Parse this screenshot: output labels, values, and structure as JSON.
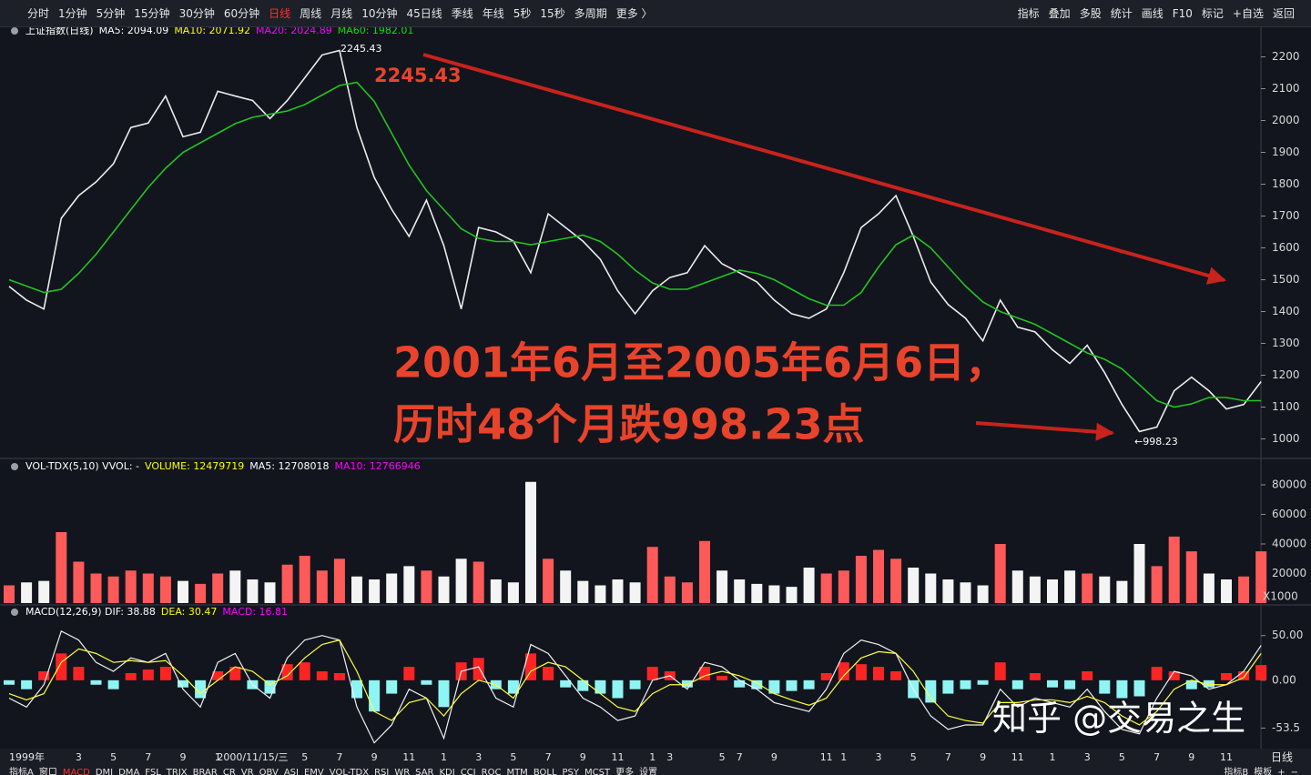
{
  "toolbar": {
    "left": [
      "分时",
      "1分钟",
      "5分钟",
      "15分钟",
      "30分钟",
      "60分钟",
      "日线",
      "周线",
      "月线",
      "10分钟",
      "45日线",
      "季线",
      "年线",
      "5秒",
      "15秒",
      "多周期",
      "更多 〉"
    ],
    "active": 6,
    "right": [
      "指标",
      "叠加",
      "多股",
      "统计",
      "画线",
      "F10",
      "标记",
      "+自选",
      "返回"
    ]
  },
  "bottom_tabs": {
    "left": [
      "指标A",
      "窗口",
      "MACD",
      "DMI",
      "DMA",
      "FSL",
      "TRIX",
      "BRAR",
      "CR",
      "VR",
      "OBV",
      "ASI",
      "EMV",
      "VOL-TDX",
      "RSI",
      "WR",
      "SAR",
      "KDJ",
      "CCI",
      "ROC",
      "MTM",
      "BOLL",
      "PSY",
      "MCST",
      "更多",
      "设置"
    ],
    "active": 2,
    "right": [
      "指标B",
      "模板",
      "+",
      "−"
    ]
  },
  "period_label": "日线",
  "watermark": "知乎 @交易之生",
  "chart_data": [
    {
      "type": "line",
      "header": [
        {
          "text": "上证指数(日线)",
          "color": "#ffffff"
        },
        {
          "text": "MA5: 2094.09",
          "color": "#ffffff"
        },
        {
          "text": "MA10: 2071.92",
          "color": "#ffff00"
        },
        {
          "text": "MA20: 2024.89",
          "color": "#ff00ff"
        },
        {
          "text": "MA60: 1982.01",
          "color": "#00e600"
        }
      ],
      "annotations": {
        "peak_big": "2245.43",
        "peak_small": "2245.43",
        "low_small": "←998.23",
        "line1": "2001年6月至2005年6月6日，",
        "line2": "历时48个月跌998.23点"
      },
      "categories": [
        "1999年",
        null,
        null,
        null,
        "3",
        null,
        "5",
        null,
        "7",
        null,
        "9",
        null,
        "1",
        null,
        "2000/11/15/三",
        null,
        null,
        "5",
        null,
        "7",
        null,
        "9",
        null,
        "11",
        null,
        "1",
        null,
        "3",
        null,
        "5",
        null,
        "7",
        null,
        "9",
        null,
        "11",
        null,
        "1",
        "3",
        null,
        null,
        "5",
        "7",
        null,
        "9",
        null,
        null,
        "11",
        "1",
        null,
        "3",
        null,
        "5",
        null,
        "7",
        null,
        "9",
        null,
        "11",
        null,
        "1",
        null,
        "3",
        null,
        "5",
        null,
        "7",
        null,
        "9",
        null,
        "11",
        null,
        null
      ],
      "series": [
        {
          "color": "#ececec",
          "values": [
            1479,
            1436,
            1408,
            1693,
            1764,
            1807,
            1864,
            1978,
            1992,
            2077,
            1949,
            1963,
            2092,
            2077,
            2063,
            2006,
            2063,
            2134,
            2206,
            2220,
            1978,
            1821,
            1721,
            1636,
            1750,
            1607,
            1408,
            1664,
            1650,
            1621,
            1522,
            1707,
            1664,
            1621,
            1564,
            1465,
            1393,
            1465,
            1507,
            1522,
            1607,
            1550,
            1522,
            1493,
            1436,
            1393,
            1379,
            1408,
            1522,
            1664,
            1707,
            1764,
            1636,
            1493,
            1422,
            1379,
            1308,
            1436,
            1351,
            1336,
            1280,
            1237,
            1294,
            1208,
            1108,
            1023,
            1037,
            1151,
            1194,
            1151,
            1094,
            1108,
            1180
          ]
        },
        {
          "color": "#22c322",
          "values": [
            1500,
            1480,
            1460,
            1470,
            1520,
            1580,
            1650,
            1720,
            1790,
            1850,
            1900,
            1930,
            1960,
            1990,
            2010,
            2020,
            2030,
            2050,
            2080,
            2110,
            2120,
            2060,
            1960,
            1860,
            1780,
            1720,
            1660,
            1630,
            1620,
            1620,
            1610,
            1620,
            1630,
            1640,
            1620,
            1580,
            1530,
            1490,
            1470,
            1470,
            1490,
            1510,
            1530,
            1520,
            1500,
            1470,
            1440,
            1420,
            1420,
            1460,
            1540,
            1610,
            1640,
            1600,
            1540,
            1480,
            1430,
            1400,
            1380,
            1360,
            1330,
            1300,
            1270,
            1250,
            1220,
            1170,
            1120,
            1100,
            1110,
            1130,
            1130,
            1120,
            1120
          ]
        }
      ],
      "ylim": [
        950,
        2250
      ],
      "yticks": [
        1000,
        1100,
        1200,
        1300,
        1400,
        1500,
        1600,
        1700,
        1800,
        1900,
        2000,
        2100,
        2200
      ]
    },
    {
      "type": "bar",
      "header": [
        {
          "text": "VOL-TDX(5,10) VVOL: -",
          "color": "#ffffff"
        },
        {
          "text": "VOLUME: 12479719",
          "color": "#ffff00"
        },
        {
          "text": "MA5: 12708018",
          "color": "#ffffff"
        },
        {
          "text": "MA10: 12766946",
          "color": "#ff00ff"
        }
      ],
      "unit": "X1000",
      "values": [
        12000,
        14000,
        15000,
        48000,
        28000,
        20000,
        18000,
        22000,
        20000,
        18000,
        15000,
        13000,
        20000,
        22000,
        16000,
        14000,
        26000,
        32000,
        22000,
        30000,
        18000,
        16000,
        20000,
        25000,
        22000,
        18000,
        30000,
        28000,
        16000,
        14000,
        82000,
        30000,
        22000,
        15000,
        12000,
        16000,
        14000,
        38000,
        18000,
        14000,
        42000,
        22000,
        16000,
        13000,
        12000,
        11000,
        24000,
        20000,
        22000,
        32000,
        36000,
        30000,
        24000,
        20000,
        16000,
        14000,
        12000,
        40000,
        22000,
        18000,
        16000,
        22000,
        20000,
        18000,
        15000,
        40000,
        25000,
        45000,
        35000,
        20000,
        16000,
        18000,
        35000
      ],
      "up_color": "#ff5a5a",
      "down_color": "#f4f4f4",
      "ylim": [
        0,
        88000
      ],
      "yticks": [
        20000,
        40000,
        60000,
        80000
      ]
    },
    {
      "type": "bar",
      "header": [
        {
          "text": "MACD(12,26,9) DIF: 38.88",
          "color": "#ffffff"
        },
        {
          "text": "DEA: 30.47",
          "color": "#ffff00"
        },
        {
          "text": "MACD: 16.81",
          "color": "#ff00ff"
        }
      ],
      "values": [
        -5,
        -10,
        10,
        30,
        15,
        -5,
        -10,
        8,
        12,
        15,
        -8,
        -20,
        10,
        15,
        -10,
        -15,
        18,
        20,
        10,
        8,
        -20,
        -35,
        -15,
        15,
        -5,
        -30,
        20,
        25,
        -10,
        -15,
        30,
        15,
        -8,
        -12,
        -15,
        -20,
        -10,
        15,
        10,
        -8,
        15,
        5,
        -8,
        -10,
        -15,
        -12,
        -10,
        8,
        20,
        18,
        15,
        10,
        -20,
        -25,
        -15,
        -10,
        -5,
        20,
        -10,
        8,
        -8,
        -10,
        10,
        -15,
        -20,
        -18,
        15,
        10,
        -10,
        -8,
        8,
        10,
        17
      ],
      "pos_color": "#ff2424",
      "neg_color": "#8ff4f4",
      "series": [
        {
          "color": "#f0f0f0",
          "values": [
            -20,
            -30,
            -5,
            55,
            45,
            20,
            10,
            25,
            20,
            30,
            -10,
            -30,
            20,
            30,
            -5,
            -20,
            25,
            45,
            50,
            45,
            -30,
            -70,
            -50,
            -10,
            -20,
            -65,
            10,
            15,
            -20,
            -30,
            40,
            30,
            5,
            -20,
            -30,
            -45,
            -40,
            0,
            5,
            -10,
            20,
            15,
            0,
            -10,
            -25,
            -30,
            -35,
            -10,
            30,
            45,
            40,
            30,
            -10,
            -40,
            -55,
            -50,
            -50,
            -10,
            -30,
            -20,
            -25,
            -30,
            -10,
            -35,
            -55,
            -60,
            -20,
            10,
            5,
            -10,
            -5,
            10,
            39
          ]
        },
        {
          "color": "#ffff3c",
          "values": [
            -15,
            -22,
            -15,
            20,
            35,
            30,
            20,
            22,
            20,
            22,
            5,
            -15,
            0,
            15,
            10,
            -5,
            5,
            25,
            40,
            45,
            10,
            -35,
            -45,
            -25,
            -20,
            -40,
            -15,
            0,
            -5,
            -20,
            10,
            20,
            15,
            0,
            -15,
            -30,
            -35,
            -15,
            -5,
            -5,
            5,
            10,
            5,
            -3,
            -15,
            -22,
            -28,
            -20,
            5,
            25,
            32,
            30,
            10,
            -20,
            -40,
            -45,
            -48,
            -25,
            -25,
            -22,
            -22,
            -25,
            -18,
            -25,
            -40,
            -50,
            -35,
            -10,
            0,
            -5,
            -5,
            3,
            30
          ]
        }
      ],
      "ylim": [
        -76.5,
        66
      ],
      "yticks": [
        {
          "value": 50,
          "label": "50.00"
        },
        {
          "value": 0,
          "label": "0.00"
        },
        {
          "value": -53.5,
          "label": "-53.5"
        }
      ]
    }
  ]
}
